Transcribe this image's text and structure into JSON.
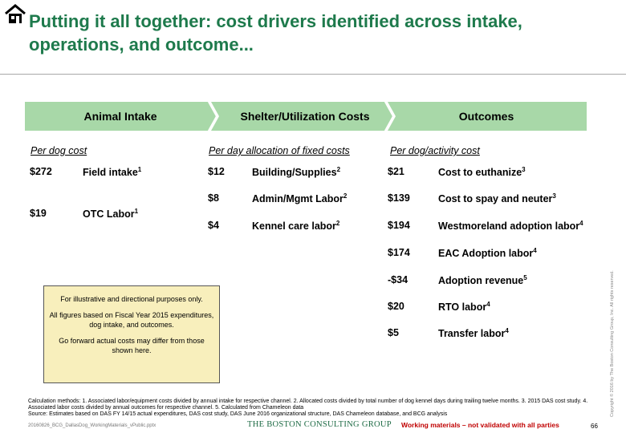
{
  "title": "Putting it all together: cost drivers identified across intake, operations, and outcome...",
  "columns": [
    {
      "header": "Animal Intake",
      "subheader": "Per dog cost",
      "items": [
        {
          "amount": "$272",
          "label": "Field intake",
          "ref": "1"
        },
        {
          "amount": "$19",
          "label": "OTC Labor",
          "ref": "1"
        }
      ]
    },
    {
      "header": "Shelter/Utilization Costs",
      "subheader": "Per day allocation of fixed costs",
      "items": [
        {
          "amount": "$12",
          "label": "Building/Supplies",
          "ref": "2"
        },
        {
          "amount": "$8",
          "label": "Admin/Mgmt Labor",
          "ref": "2"
        },
        {
          "amount": "$4",
          "label": "Kennel care labor",
          "ref": "2"
        }
      ]
    },
    {
      "header": "Outcomes",
      "subheader": "Per dog/activity cost",
      "items": [
        {
          "amount": "$21",
          "label": "Cost to euthanize",
          "ref": "3"
        },
        {
          "amount": "$139",
          "label": "Cost to spay and neuter",
          "ref": "3"
        },
        {
          "amount": "$194",
          "label": "Westmoreland adoption labor",
          "ref": "4"
        },
        {
          "amount": "$174",
          "label": "EAC Adoption labor",
          "ref": "4"
        },
        {
          "amount": "-$34",
          "label": "Adoption revenue",
          "ref": "5"
        },
        {
          "amount": "$20",
          "label": "RTO labor",
          "ref": "4"
        },
        {
          "amount": "$5",
          "label": "Transfer labor",
          "ref": "4"
        }
      ]
    }
  ],
  "note": {
    "line1": "For illustrative and directional purposes only.",
    "line2": "All figures based on Fiscal Year 2015 expenditures, dog intake, and outcomes.",
    "line3": "Go forward actual costs may differ from those shown here."
  },
  "footnotes": {
    "methods": "Calculation methods: 1. Associated labor/equipment costs divided by annual intake for respective channel. 2. Allocated costs divided by total number of dog kennel days during trailing twelve months. 3. 2015 DAS cost study. 4. Associated labor costs divided by annual outcomes for respective channel. 5. Calculated from Chameleon data",
    "source": "Source: Estimates based on DAS FY 14/15 actual expenditures, DAS cost study, DAS June 2016 organizational structure, DAS Chameleon database, and BCG analysis"
  },
  "footer": {
    "filename": "20160826_BCG_DallasDog_WorkingMaterials_vPublic.pptx",
    "brand": "THE BOSTON CONSULTING GROUP",
    "warning": "Working materials – not validated with all parties",
    "page": "66",
    "copyright": "Copyright © 2016 by The Boston Consulting Group, Inc. All rights reserved."
  },
  "colors": {
    "accent": "#1e7a4c",
    "chevron": "#a8d8a8",
    "note_bg": "#f8efbc",
    "warning": "#c00000"
  },
  "icons": {
    "logo": "house-icon"
  }
}
